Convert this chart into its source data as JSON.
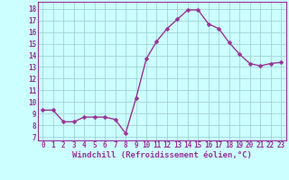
{
  "x": [
    0,
    1,
    2,
    3,
    4,
    5,
    6,
    7,
    8,
    9,
    10,
    11,
    12,
    13,
    14,
    15,
    16,
    17,
    18,
    19,
    20,
    21,
    22,
    23
  ],
  "y": [
    9.3,
    9.3,
    8.3,
    8.3,
    8.7,
    8.7,
    8.7,
    8.5,
    7.3,
    10.3,
    13.7,
    15.2,
    16.3,
    17.1,
    17.9,
    17.9,
    16.7,
    16.3,
    15.1,
    14.1,
    13.3,
    13.1,
    13.3,
    13.4
  ],
  "line_color": "#993399",
  "marker_color": "#993399",
  "bg_color": "#ccffff",
  "grid_color": "#99cccc",
  "xlabel": "Windchill (Refroidissement éolien,°C)",
  "xlabel_color": "#993399",
  "ylabel_major": [
    7,
    8,
    9,
    10,
    11,
    12,
    13,
    14,
    15,
    16,
    17,
    18
  ],
  "ylim": [
    6.7,
    18.6
  ],
  "xlim": [
    -0.5,
    23.5
  ],
  "xtick_labels": [
    "0",
    "1",
    "2",
    "3",
    "4",
    "5",
    "6",
    "7",
    "8",
    "9",
    "10",
    "11",
    "12",
    "13",
    "14",
    "15",
    "16",
    "17",
    "18",
    "19",
    "20",
    "21",
    "22",
    "23"
  ],
  "tick_color": "#993399",
  "spine_color": "#993399",
  "marker_size": 2.5,
  "line_width": 1.0,
  "tick_fontsize": 5.5,
  "xlabel_fontsize": 6.5
}
